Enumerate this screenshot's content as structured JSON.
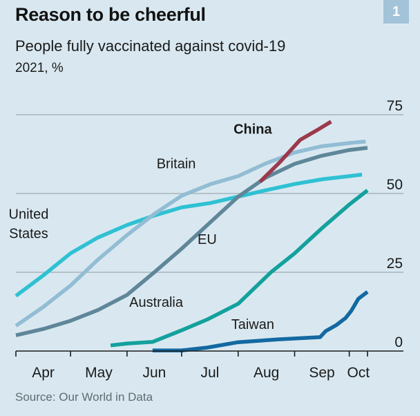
{
  "header": {
    "title": "Reason to be cheerful",
    "subtitle": "People fully vaccinated against covid-19",
    "units": "2021, %",
    "badge": "1"
  },
  "footer": {
    "source": "Source: Our World in Data"
  },
  "colors": {
    "background": "#d9e8f0",
    "gridline": "#b3c1c9",
    "axis": "#1a1a1a",
    "badge": "#a3c3d8"
  },
  "chart_data": {
    "type": "line",
    "title": "Reason to be cheerful",
    "subtitle": "People fully vaccinated against covid-19",
    "xlabel": "",
    "ylabel": "2021, %",
    "x_unit": "days since April 1st 2021",
    "xlim": [
      0,
      193
    ],
    "ylim": [
      0,
      75
    ],
    "grid": true,
    "yticks": [
      0,
      25,
      50,
      75
    ],
    "ytick_labels": [
      "0",
      "25",
      "50",
      "75"
    ],
    "xticks": [
      0,
      30,
      61,
      91,
      122,
      153,
      183,
      193
    ],
    "xtick_labels": [
      {
        "label": "Apr",
        "center": 15
      },
      {
        "label": "May",
        "center": 45.5
      },
      {
        "label": "Jun",
        "center": 76
      },
      {
        "label": "Jul",
        "center": 106.5
      },
      {
        "label": "Aug",
        "center": 137.5
      },
      {
        "label": "Sep",
        "center": 168
      },
      {
        "label": "Oct",
        "center": 188
      }
    ],
    "series": [
      {
        "name": "United States",
        "label_lines": [
          "United",
          "States"
        ],
        "bold": false,
        "color": "#2fc1d3",
        "label_anchor": [
          7,
          42
        ],
        "points": [
          [
            0,
            17.5
          ],
          [
            15,
            24
          ],
          [
            30,
            31
          ],
          [
            45,
            36
          ],
          [
            61,
            40
          ],
          [
            76,
            43
          ],
          [
            91,
            45.6
          ],
          [
            107,
            47
          ],
          [
            122,
            49
          ],
          [
            137,
            51
          ],
          [
            153,
            53
          ],
          [
            168,
            54.5
          ],
          [
            183,
            55.5
          ],
          [
            190,
            56
          ]
        ]
      },
      {
        "name": "Britain",
        "label_lines": [
          "Britain"
        ],
        "bold": false,
        "color": "#92bdd4",
        "label_anchor": [
          88,
          58
        ],
        "points": [
          [
            0,
            8
          ],
          [
            15,
            14
          ],
          [
            30,
            20.8
          ],
          [
            45,
            29
          ],
          [
            61,
            36.8
          ],
          [
            76,
            43.5
          ],
          [
            91,
            49.3
          ],
          [
            107,
            53
          ],
          [
            122,
            55.5
          ],
          [
            137,
            59.5
          ],
          [
            153,
            63
          ],
          [
            168,
            65
          ],
          [
            183,
            66
          ],
          [
            192,
            66.5
          ]
        ]
      },
      {
        "name": "EU",
        "label_lines": [
          "EU"
        ],
        "bold": false,
        "color": "#5f8699",
        "label_anchor": [
          105,
          34
        ],
        "points": [
          [
            0,
            5
          ],
          [
            15,
            7
          ],
          [
            30,
            9.6
          ],
          [
            45,
            13
          ],
          [
            61,
            17.8
          ],
          [
            76,
            25
          ],
          [
            91,
            32.5
          ],
          [
            107,
            41
          ],
          [
            122,
            49
          ],
          [
            137,
            55
          ],
          [
            153,
            59.4
          ],
          [
            168,
            62
          ],
          [
            183,
            63.8
          ],
          [
            193,
            64.5
          ]
        ]
      },
      {
        "name": "China",
        "label_lines": [
          "China"
        ],
        "bold": true,
        "color": "#9b3a4c",
        "label_anchor": [
          130,
          69
        ],
        "points": [
          [
            134,
            53.7
          ],
          [
            145,
            60
          ],
          [
            156,
            67
          ],
          [
            165,
            70
          ],
          [
            173,
            72.8
          ]
        ]
      },
      {
        "name": "Australia",
        "label_lines": [
          "Australia"
        ],
        "bold": false,
        "color": "#14a19d",
        "label_anchor": [
          77,
          14
        ],
        "points": [
          [
            52,
            1.8
          ],
          [
            61,
            2.4
          ],
          [
            75,
            2.9
          ],
          [
            91,
            6.6
          ],
          [
            105,
            10
          ],
          [
            122,
            15
          ],
          [
            140,
            25
          ],
          [
            153,
            31
          ],
          [
            168,
            39
          ],
          [
            183,
            46.5
          ],
          [
            193,
            51
          ]
        ]
      },
      {
        "name": "Taiwan",
        "label_lines": [
          "Taiwan"
        ],
        "bold": false,
        "color": "#1369a1",
        "label_anchor": [
          130,
          7
        ],
        "points": [
          [
            75,
            0.2
          ],
          [
            91,
            0.2
          ],
          [
            105,
            1.1
          ],
          [
            122,
            2.8
          ],
          [
            144,
            3.7
          ],
          [
            167,
            4.4
          ],
          [
            170,
            6.3
          ],
          [
            176,
            8.3
          ],
          [
            181,
            10.5
          ],
          [
            184,
            12.7
          ],
          [
            188,
            16.6
          ],
          [
            193,
            18.8
          ]
        ]
      }
    ]
  }
}
